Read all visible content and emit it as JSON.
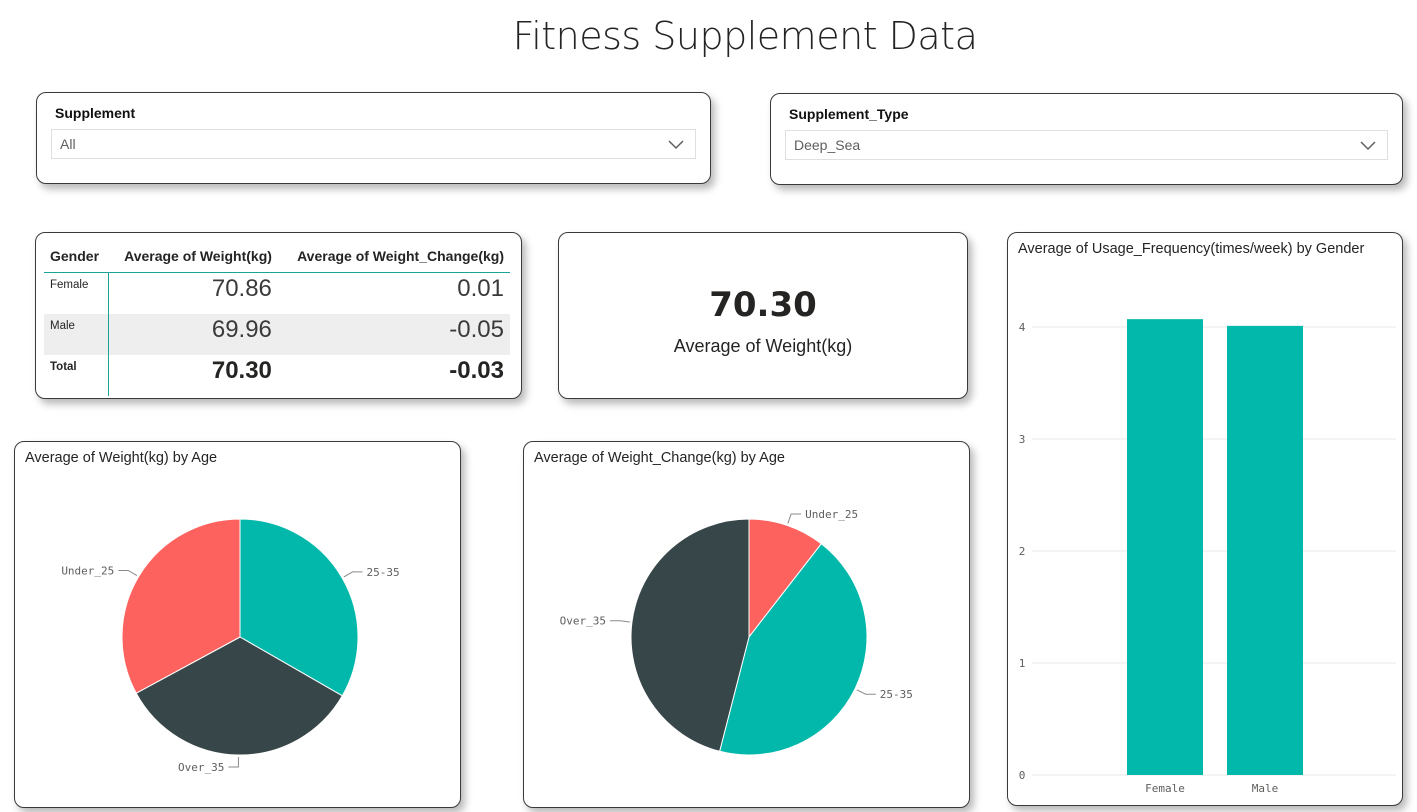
{
  "page_title": "Fitness Supplement Data",
  "slicers": {
    "supplement": {
      "label": "Supplement",
      "value": "All"
    },
    "supplement_type": {
      "label": "Supplement_Type",
      "value": "Deep_Sea"
    }
  },
  "table": {
    "headers": [
      "Gender",
      "Average of Weight(kg)",
      "Average of Weight_Change(kg)"
    ],
    "rows": [
      {
        "gender": "Female",
        "weight": "70.86",
        "change": "0.01"
      },
      {
        "gender": "Male",
        "weight": "69.96",
        "change": "-0.05"
      }
    ],
    "total": {
      "gender": "Total",
      "weight": "70.30",
      "change": "-0.03"
    }
  },
  "kpi": {
    "value": "70.30",
    "label": "Average of Weight(kg)"
  },
  "colors": {
    "teal": "#01b8aa",
    "dark": "#374649",
    "red": "#fd625e",
    "accent_line": "#1aa39a"
  },
  "chart_data": [
    {
      "type": "pie",
      "title": "Average of Weight(kg) by Age",
      "categories": [
        "25-35",
        "Over_35",
        "Under_25"
      ],
      "values": [
        33.3,
        33.8,
        32.9
      ],
      "colors": [
        "#01b8aa",
        "#374649",
        "#fd625e"
      ]
    },
    {
      "type": "pie",
      "title": "Average of Weight_Change(kg) by Age",
      "categories": [
        "Under_25",
        "25-35",
        "Over_35"
      ],
      "values": [
        10.5,
        43.5,
        46.0
      ],
      "colors": [
        "#fd625e",
        "#01b8aa",
        "#374649"
      ]
    },
    {
      "type": "bar",
      "title": "Average of Usage_Frequency(times/week) by Gender",
      "categories": [
        "Female",
        "Male"
      ],
      "values": [
        4.07,
        4.01
      ],
      "ylim": [
        0,
        5
      ],
      "yticks": [
        "0",
        "1",
        "2",
        "3",
        "4"
      ],
      "color": "#01b8aa"
    }
  ]
}
